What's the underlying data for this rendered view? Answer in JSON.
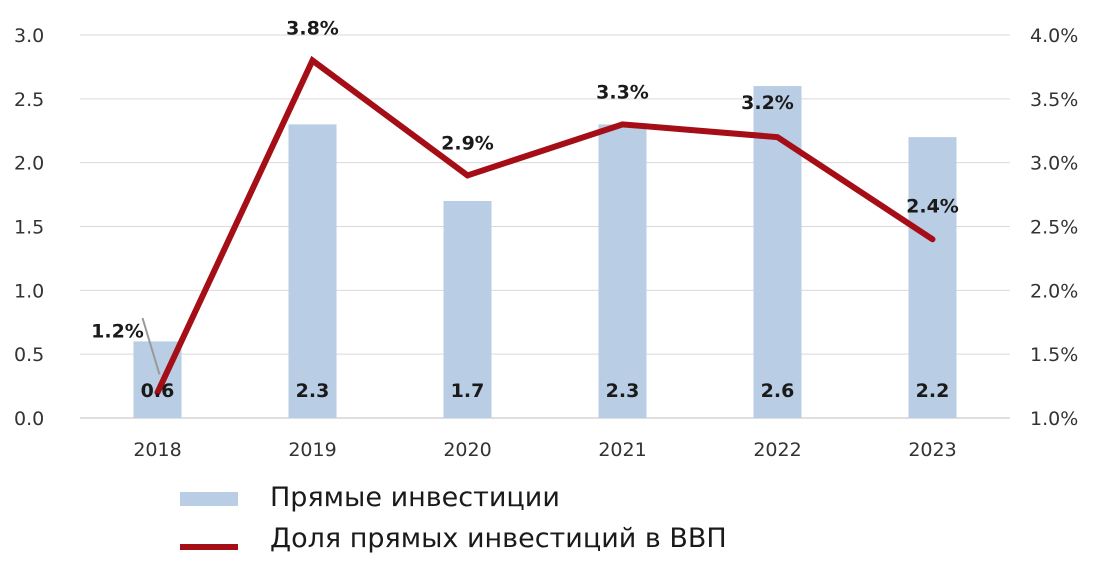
{
  "chart_data": {
    "type": "bar",
    "categories": [
      "2018",
      "2019",
      "2020",
      "2021",
      "2022",
      "2023"
    ],
    "series": [
      {
        "name": "Прямые инвестиции",
        "type": "bar",
        "axis": "left",
        "values": [
          0.6,
          2.3,
          1.7,
          2.3,
          2.6,
          2.2
        ],
        "labels": [
          "0.6",
          "2.3",
          "1.7",
          "2.3",
          "2.6",
          "2.2"
        ],
        "color": "#b9cde4"
      },
      {
        "name": "Доля прямых инвестиций в ВВП",
        "type": "line",
        "axis": "right",
        "values": [
          1.2,
          3.8,
          2.9,
          3.3,
          3.2,
          2.4
        ],
        "labels": [
          "1.2%",
          "3.8%",
          "2.9%",
          "3.3%",
          "3.2%",
          "2.4%"
        ],
        "color": "#a50e16"
      }
    ],
    "y_left": {
      "lim": [
        0.0,
        3.0
      ],
      "ticks": [
        "0.0",
        "0.5",
        "1.0",
        "1.5",
        "2.0",
        "2.5",
        "3.0"
      ]
    },
    "y_right": {
      "lim": [
        1.0,
        4.0
      ],
      "ticks": [
        "1.0%",
        "1.5%",
        "2.0%",
        "2.5%",
        "3.0%",
        "3.5%",
        "4.0%"
      ]
    },
    "grid": true,
    "legend_position": "bottom-left"
  }
}
